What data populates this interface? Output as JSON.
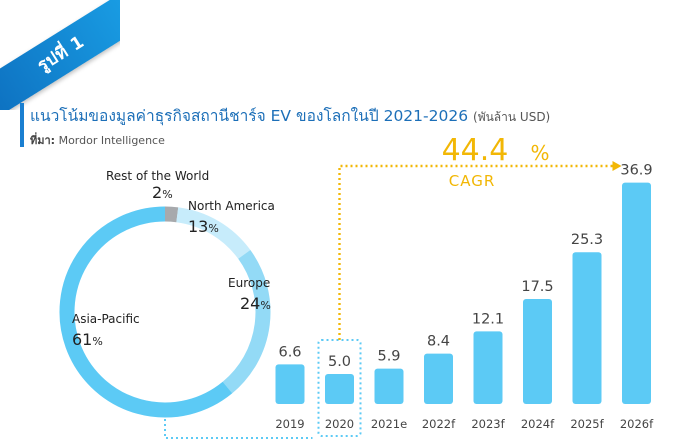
{
  "badge": {
    "label": "รูปที่ 1"
  },
  "header": {
    "title": "แนวโน้มของมูลค่าธุรกิจสถานีชาร์จ EV ของโลกในปี 2021-2026",
    "unit": "(พันล้าน USD)",
    "source_label": "ที่มา:",
    "source_value": "Mordor Intelligence"
  },
  "colors": {
    "bar": "#5ccaf5",
    "highlight_border": "#5ccaf5",
    "connector": "#f2b705",
    "cagr_text": "#f2b705",
    "title": "#1c6fb8"
  },
  "chart_data": [
    {
      "type": "bar",
      "categories": [
        "2019",
        "2020",
        "2021e",
        "2022f",
        "2023f",
        "2024f",
        "2025f",
        "2026f"
      ],
      "values": [
        6.6,
        5.0,
        5.9,
        8.4,
        12.1,
        17.5,
        25.3,
        36.9
      ],
      "labels": [
        "6.6",
        "5.0",
        "5.9",
        "8.4",
        "12.1",
        "17.5",
        "25.3",
        "36.9"
      ],
      "highlight_category": "2020",
      "annotation": {
        "value": "44.4",
        "unit": "%",
        "label": "CAGR"
      },
      "ylim": [
        0,
        37
      ],
      "grid": false
    },
    {
      "type": "pie",
      "style": "donut",
      "slices": [
        {
          "name": "Rest of the World",
          "value": 2,
          "pct": "2",
          "color": "#a7a9ac"
        },
        {
          "name": "North America",
          "value": 13,
          "pct": "13",
          "color": "#c7ecfb"
        },
        {
          "name": "Europe",
          "value": 24,
          "pct": "24",
          "color": "#93daf6"
        },
        {
          "name": "Asia-Pacific",
          "value": 61,
          "pct": "61",
          "color": "#5ccaf5"
        }
      ],
      "pct_sign": "%"
    }
  ]
}
